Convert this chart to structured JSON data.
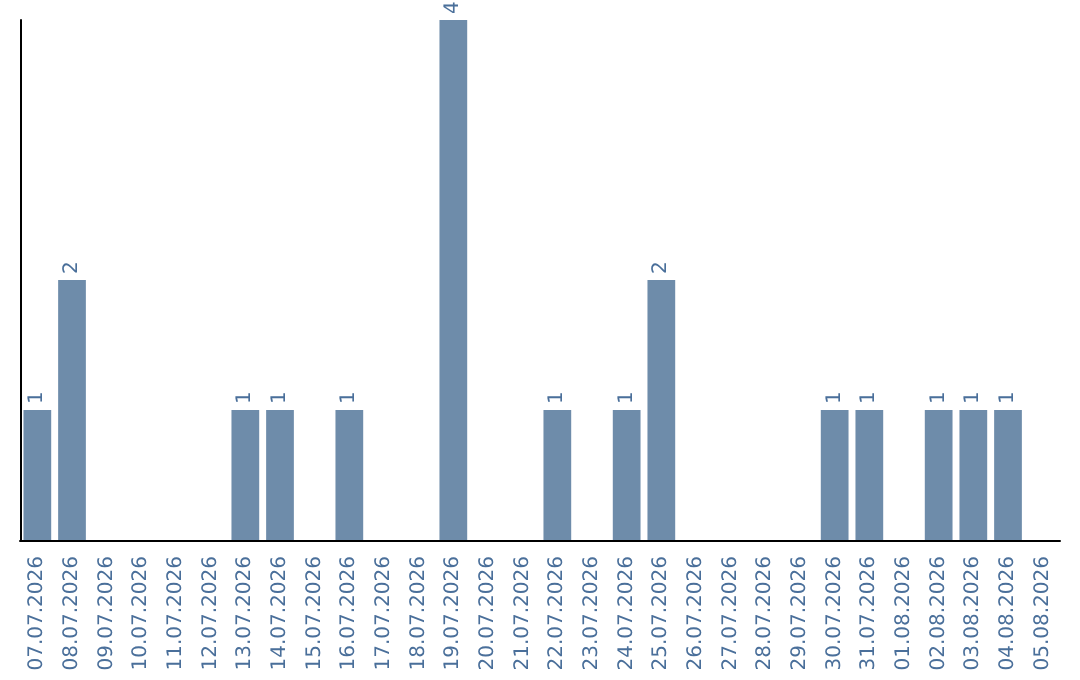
{
  "chart_data": {
    "type": "bar",
    "categories": [
      "07.07.2026",
      "08.07.2026",
      "09.07.2026",
      "10.07.2026",
      "11.07.2026",
      "12.07.2026",
      "13.07.2026",
      "14.07.2026",
      "15.07.2026",
      "16.07.2026",
      "17.07.2026",
      "18.07.2026",
      "19.07.2026",
      "20.07.2026",
      "21.07.2026",
      "22.07.2026",
      "23.07.2026",
      "24.07.2026",
      "25.07.2026",
      "26.07.2026",
      "27.07.2026",
      "28.07.2026",
      "29.07.2026",
      "30.07.2026",
      "31.07.2026",
      "01.08.2026",
      "02.08.2026",
      "03.08.2026",
      "04.08.2026",
      "05.08.2026"
    ],
    "values": [
      1,
      2,
      0,
      0,
      0,
      0,
      1,
      1,
      0,
      1,
      0,
      0,
      4,
      0,
      0,
      1,
      0,
      1,
      2,
      0,
      0,
      0,
      0,
      1,
      1,
      0,
      1,
      1,
      1,
      0
    ],
    "value_labels": [
      "1",
      "2",
      null,
      null,
      null,
      null,
      "1",
      "1",
      null,
      "1",
      null,
      null,
      "4",
      null,
      null,
      "1",
      null,
      "1",
      "2",
      null,
      null,
      null,
      null,
      "1",
      "1",
      null,
      "1",
      "1",
      "1",
      null
    ],
    "color": "#6e8caa",
    "grid": false,
    "tick_labels": "x"
  }
}
